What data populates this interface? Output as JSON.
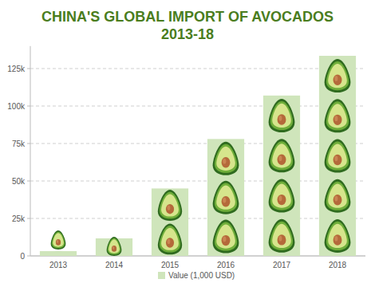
{
  "chart_data": {
    "type": "bar",
    "title": "CHINA'S GLOBAL IMPORT OF AVOCADOS",
    "subtitle": "2013-18",
    "categories": [
      "2013",
      "2014",
      "2015",
      "2016",
      "2017",
      "2018"
    ],
    "series": [
      {
        "name": "Value (1,000 USD)",
        "color": "#cfe5bb",
        "values": [
          3200,
          11700,
          45000,
          78000,
          107000,
          133500
        ]
      }
    ],
    "ylim": [
      0,
      140000
    ],
    "yticks": [
      0,
      {
        "value": 25000,
        "label": "25k"
      },
      {
        "value": 50000,
        "label": "50k"
      },
      {
        "value": 75000,
        "label": "75k"
      },
      {
        "value": 100000,
        "label": "100k"
      },
      {
        "value": 125000,
        "label": "125k"
      }
    ],
    "grid": true,
    "legend": "bottom"
  }
}
